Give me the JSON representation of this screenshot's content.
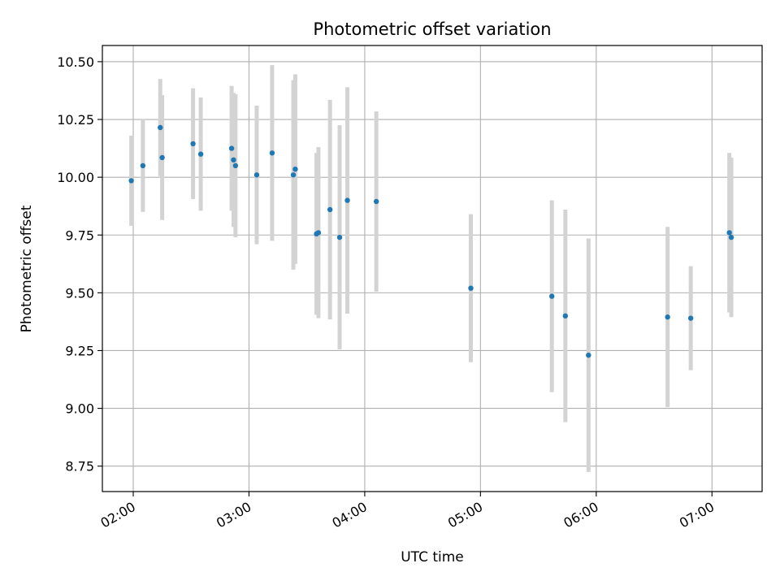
{
  "chart_data": {
    "type": "scatter",
    "title": "Photometric offset variation",
    "xlabel": "UTC time",
    "ylabel": "Photometric offset",
    "x_tick_labels": [
      "02:00",
      "03:00",
      "04:00",
      "05:00",
      "06:00",
      "07:00"
    ],
    "y_tick_labels": [
      "8.75",
      "9.00",
      "9.25",
      "9.50",
      "9.75",
      "10.00",
      "10.25",
      "10.50"
    ],
    "x_ticks": [
      "02:00",
      "03:00",
      "04:00",
      "05:00",
      "06:00",
      "07:00"
    ],
    "y_ticks": [
      8.75,
      9.0,
      9.25,
      9.5,
      9.75,
      10.0,
      10.25,
      10.5
    ],
    "xlim": [
      "01:44",
      "07:26"
    ],
    "ylim": [
      8.64,
      10.57
    ],
    "grid": true,
    "point_color": "#1f77b4",
    "errorbar_color": "#d3d3d3",
    "points": [
      {
        "t": "01:59",
        "y": 9.985,
        "err": 0.195
      },
      {
        "t": "02:05",
        "y": 10.05,
        "err": 0.2
      },
      {
        "t": "02:14",
        "y": 10.215,
        "err": 0.21
      },
      {
        "t": "02:15",
        "y": 10.085,
        "err": 0.27
      },
      {
        "t": "02:31",
        "y": 10.145,
        "err": 0.24
      },
      {
        "t": "02:35",
        "y": 10.1,
        "err": 0.245
      },
      {
        "t": "02:51",
        "y": 10.125,
        "err": 0.27
      },
      {
        "t": "02:52",
        "y": 10.075,
        "err": 0.29
      },
      {
        "t": "02:53",
        "y": 10.05,
        "err": 0.31
      },
      {
        "t": "03:04",
        "y": 10.01,
        "err": 0.3
      },
      {
        "t": "03:12",
        "y": 10.105,
        "err": 0.38
      },
      {
        "t": "03:23",
        "y": 10.01,
        "err": 0.41
      },
      {
        "t": "03:24",
        "y": 10.035,
        "err": 0.41
      },
      {
        "t": "03:35",
        "y": 9.755,
        "err": 0.35
      },
      {
        "t": "03:36",
        "y": 9.76,
        "err": 0.37
      },
      {
        "t": "03:42",
        "y": 9.86,
        "err": 0.475
      },
      {
        "t": "03:47",
        "y": 9.74,
        "err": 0.485
      },
      {
        "t": "03:51",
        "y": 9.9,
        "err": 0.49
      },
      {
        "t": "04:06",
        "y": 9.895,
        "err": 0.39
      },
      {
        "t": "04:55",
        "y": 9.52,
        "err": 0.32
      },
      {
        "t": "05:37",
        "y": 9.485,
        "err": 0.415
      },
      {
        "t": "05:44",
        "y": 9.4,
        "err": 0.46
      },
      {
        "t": "05:56",
        "y": 9.23,
        "err": 0.505
      },
      {
        "t": "06:37",
        "y": 9.395,
        "err": 0.39
      },
      {
        "t": "06:49",
        "y": 9.39,
        "err": 0.225
      },
      {
        "t": "07:09",
        "y": 9.76,
        "err": 0.345
      },
      {
        "t": "07:10",
        "y": 9.74,
        "err": 0.345
      }
    ]
  }
}
